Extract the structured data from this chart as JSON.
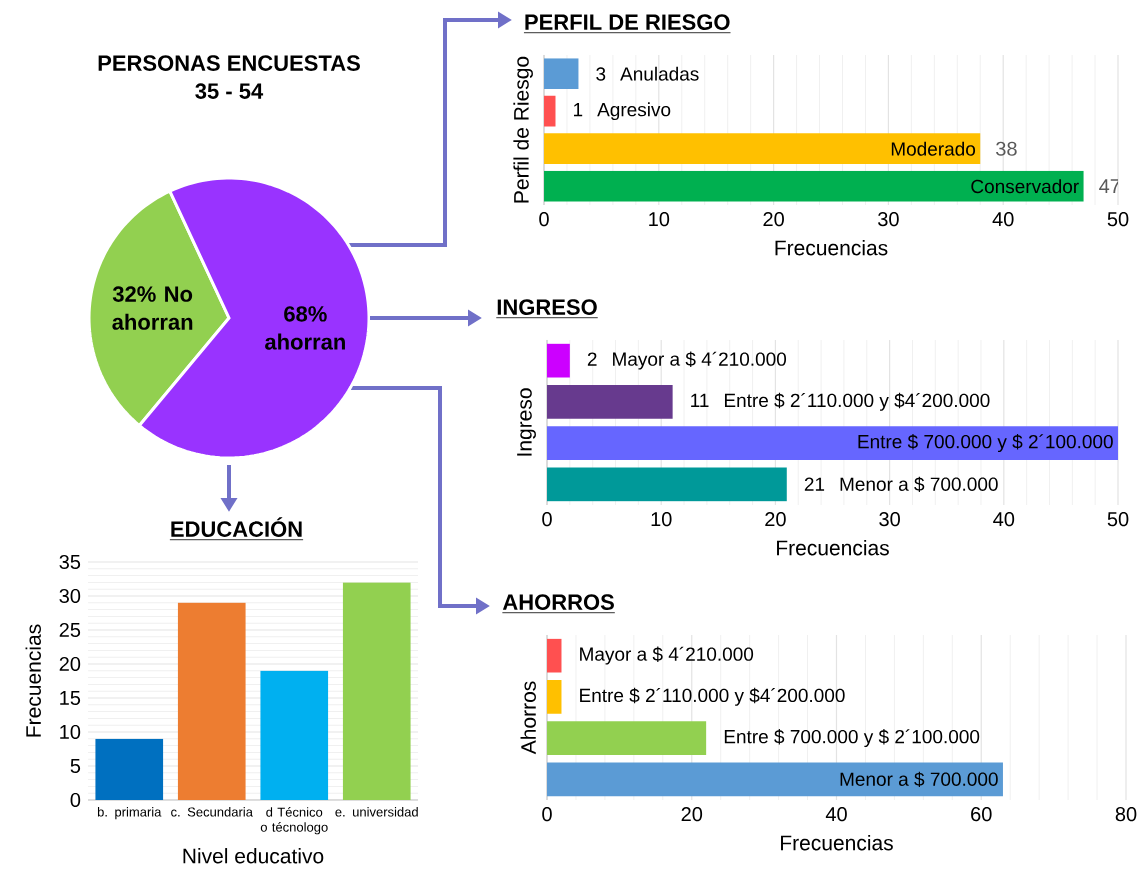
{
  "chart_data": [
    {
      "type": "pie",
      "title": "PERSONAS ENCUESTAS",
      "subtitle": "35 - 54",
      "categories": [
        "No ahorran",
        "ahorran"
      ],
      "values": [
        32,
        68
      ],
      "colors": [
        "#92d050",
        "#9933ff"
      ],
      "value_labels": [
        "32%",
        "68%"
      ]
    },
    {
      "type": "bar",
      "title": "PERFIL DE RIESGO",
      "orientation": "horizontal",
      "xlabel": "Frecuencias",
      "ylabel": "Perfil de Riesgo",
      "categories": [
        "Anuladas",
        "Agresivo",
        "Moderado",
        "Conservador"
      ],
      "values": [
        3,
        1,
        38,
        47
      ],
      "colors": [
        "#5b9bd5",
        "#ff5050",
        "#ffc000",
        "#00b050"
      ],
      "data_labels": true,
      "xlim": [
        0,
        50
      ],
      "xticks": [
        0,
        10,
        20,
        30,
        40,
        50
      ],
      "grid": "x",
      "tick_labels": "x"
    },
    {
      "type": "bar",
      "title": "INGRESO",
      "orientation": "horizontal",
      "xlabel": "Frecuencias",
      "ylabel": "Ingreso",
      "categories": [
        "Mayor a $ 4´210.000",
        "Entre $ 2´110.000 y $4´200.000",
        "Entre $ 700.000 y $ 2´100.000",
        "Menor a $ 700.000"
      ],
      "values": [
        2,
        11,
        50,
        21
      ],
      "value_labels": [
        "2",
        "11",
        null,
        "21"
      ],
      "colors": [
        "#cc00ff",
        "#673a8e",
        "#6666ff",
        "#009999"
      ],
      "xlim": [
        0,
        50
      ],
      "xticks": [
        0,
        10,
        20,
        30,
        40,
        50
      ],
      "grid": "x",
      "tick_labels": "x"
    },
    {
      "type": "bar",
      "title": "AHORROS",
      "orientation": "horizontal",
      "xlabel": "Frecuencias",
      "ylabel": "Ahorros",
      "categories": [
        "Mayor a $ 4´210.000",
        "Entre $ 2´110.000 y $4´200.000",
        "Entre $ 700.000 y  $ 2´100.000",
        "Menor a $ 700.000"
      ],
      "values": [
        2,
        2,
        22,
        63
      ],
      "colors": [
        "#ff5050",
        "#ffc000",
        "#92d050",
        "#5b9bd5"
      ],
      "xlim": [
        0,
        80
      ],
      "xticks": [
        0,
        20,
        40,
        60,
        80
      ],
      "grid": "x",
      "tick_labels": "x"
    },
    {
      "type": "bar",
      "title": "EDUCACIÓN",
      "xlabel": "Nivel educativo",
      "ylabel": "Frecuencias",
      "categories": [
        "b. primaria",
        "c. Secundaria",
        "d  Técnico o técnologo",
        "e. universidad"
      ],
      "values": [
        9,
        29,
        19,
        32
      ],
      "colors": [
        "#0070c0",
        "#ed7d31",
        "#00b0f0",
        "#92d050"
      ],
      "ylim": [
        0,
        35
      ],
      "yticks": [
        0,
        5,
        10,
        15,
        20,
        25,
        30,
        35
      ],
      "grid": "y"
    }
  ]
}
